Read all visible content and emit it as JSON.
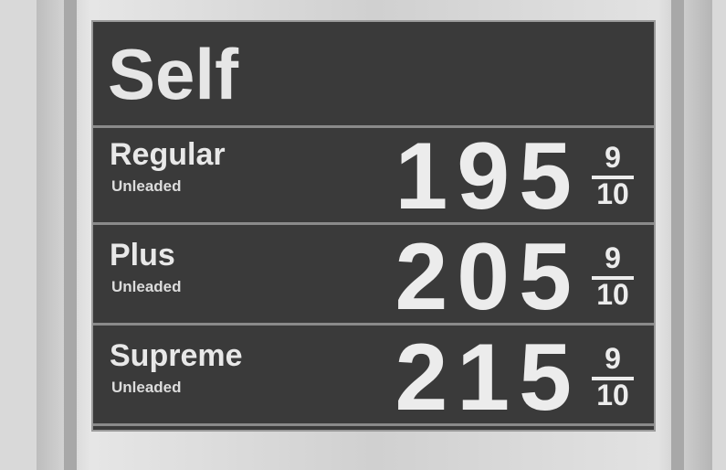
{
  "sign": {
    "header": "Self",
    "rows": [
      {
        "grade": "Regular",
        "subtitle": "Unleaded",
        "price": 195,
        "fraction": {
          "numerator": 9,
          "denominator": 10
        }
      },
      {
        "grade": "Plus",
        "subtitle": "Unleaded",
        "price": 205,
        "fraction": {
          "numerator": 9,
          "denominator": 10
        }
      },
      {
        "grade": "Supreme",
        "subtitle": "Unleaded",
        "price": 215,
        "fraction": {
          "numerator": 9,
          "denominator": 10
        }
      }
    ]
  }
}
